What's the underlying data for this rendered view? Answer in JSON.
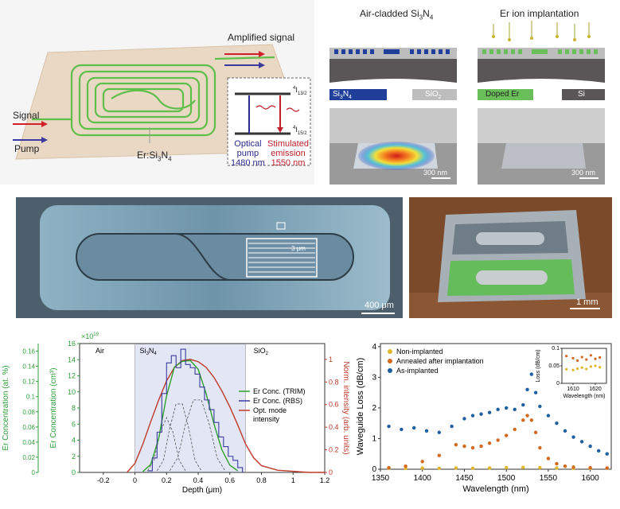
{
  "panel_a": {
    "amplified_signal": "Amplified signal",
    "signal": "Signal",
    "pump": "Pump",
    "material": "Er:Si",
    "material_sub3": "3",
    "material_N": "N",
    "material_sub4": "4",
    "level_upper": "4",
    "level_upper_rest": "I",
    "level_upper_sub": "13/2",
    "level_lower": "4",
    "level_lower_rest": "I",
    "level_lower_sub": "15/2",
    "optical": "Optical",
    "pump_word": "pump",
    "pump_nm": "1480 nm",
    "stimulated": "Stimulated",
    "emission": "emission",
    "emission_nm": "1550 nm"
  },
  "panel_b": {
    "title_left": "Air-cladded Si",
    "title_left_sub3": "3",
    "title_left_N": "N",
    "title_left_sub4": "4",
    "title_right": "Er ion implantation",
    "legend_si3n4": "Si",
    "legend_si3n4_sub3": "3",
    "legend_si3n4_N": "N",
    "legend_si3n4_sub4": "4",
    "legend_sio2": "SiO",
    "legend_sio2_sub": "2",
    "legend_doped": "Doped Er",
    "legend_si": "Si",
    "scale_left": "300 nm",
    "scale_right": "300 nm",
    "colors": {
      "si3n4": "#1f3f9b",
      "sio2": "#bdbdbd",
      "doped": "#6bbf5a",
      "si": "#5a5658"
    }
  },
  "panel_c": {
    "inset_scale": "3 μm",
    "scale": "400 μm"
  },
  "panel_d": {
    "scale": "1 mm"
  },
  "chart_data": [
    {
      "type": "line",
      "title": "",
      "xlabel": "Depth (μm)",
      "ylabel_left_outer": "Er Concentration (at. %)",
      "ylabel_left_inner": "Er Concentration (cm³)",
      "ylabel_right": "Norm. intensity (arb. units)",
      "exponent_label": "×10",
      "exponent_power": "19",
      "xlim": [
        -0.35,
        1.2
      ],
      "ylim_conc": [
        0,
        16
      ],
      "ylim_at": [
        0,
        0.17
      ],
      "ylim_norm": [
        0,
        1.14
      ],
      "x_ticks": [
        "-0.2",
        "0",
        "0.2",
        "0.4",
        "0.6",
        "0.8",
        "1",
        "1.2"
      ],
      "x_tick_values": [
        -0.2,
        0,
        0.2,
        0.4,
        0.6,
        0.8,
        1.0,
        1.2
      ],
      "y_ticks_conc": [
        "0",
        "2",
        "4",
        "6",
        "8",
        "10",
        "12",
        "14",
        "16"
      ],
      "y_ticks_at": [
        "0",
        "0.02",
        "0.04",
        "0.06",
        "0.08",
        "0.1",
        "0.12",
        "0.14",
        "0.16"
      ],
      "y_ticks_norm": [
        "0",
        "0.2",
        "0.4",
        "0.6",
        "0.8",
        "1"
      ],
      "regions": [
        {
          "label": "Air",
          "from": -0.35,
          "to": 0
        },
        {
          "label": "Si",
          "sub1": "3",
          "mid": "N",
          "sub2": "4",
          "from": 0,
          "to": 0.7
        },
        {
          "label": "SiO",
          "sub1": "2",
          "from": 0.7,
          "to": 1.2
        }
      ],
      "legend": [
        "Er Conc. (TRIM)",
        "Er Conc. (RBS)",
        "Opt. mode",
        "intensity"
      ],
      "colors": {
        "trim": "#2ca02c",
        "rbs": "#3b3b9e",
        "mode": "#c0392b",
        "left_axis": "#2e9e3a",
        "right_axis": "#c0392b",
        "silicon_nitride_band": "#e3e6f5"
      },
      "series": [
        {
          "name": "Er Conc. (TRIM)",
          "x": [
            0.05,
            0.1,
            0.15,
            0.2,
            0.25,
            0.3,
            0.35,
            0.4,
            0.45,
            0.5,
            0.55,
            0.6,
            0.65
          ],
          "values": [
            0.1,
            1.0,
            4.2,
            9.5,
            13.1,
            13.8,
            13.9,
            12.8,
            9.8,
            6.0,
            2.8,
            0.9,
            0.2
          ]
        },
        {
          "name": "Er Conc. (RBS)",
          "x": [
            0.08,
            0.11,
            0.14,
            0.17,
            0.2,
            0.23,
            0.26,
            0.29,
            0.32,
            0.35,
            0.38,
            0.41,
            0.44,
            0.47,
            0.5,
            0.53,
            0.56,
            0.59,
            0.62,
            0.65,
            0.68
          ],
          "values": [
            0.2,
            1.8,
            5.0,
            9.8,
            13.6,
            14.5,
            13.0,
            15.3,
            13.4,
            13.0,
            12.2,
            10.6,
            9.0,
            7.8,
            6.2,
            4.4,
            3.2,
            2.0,
            1.5,
            0.6,
            0.0
          ]
        },
        {
          "name": "Opt. mode intensity",
          "x": [
            -0.05,
            0.0,
            0.05,
            0.1,
            0.15,
            0.2,
            0.25,
            0.3,
            0.35,
            0.4,
            0.45,
            0.5,
            0.55,
            0.6,
            0.65,
            0.7,
            0.75,
            0.8,
            0.9,
            1.0,
            1.1,
            1.2
          ],
          "values": [
            0.0,
            0.08,
            0.25,
            0.45,
            0.64,
            0.81,
            0.93,
            0.99,
            1.0,
            0.98,
            0.93,
            0.84,
            0.72,
            0.58,
            0.42,
            0.25,
            0.13,
            0.06,
            0.02,
            0.01,
            0.0,
            0.0
          ]
        },
        {
          "name": "Implant component 1",
          "x": [
            0.08,
            0.12,
            0.16,
            0.2,
            0.24,
            0.28,
            0.32
          ],
          "values": [
            0.2,
            1.5,
            5.0,
            6.8,
            5.0,
            1.5,
            0.2
          ]
        },
        {
          "name": "Implant component 2",
          "x": [
            0.14,
            0.18,
            0.22,
            0.26,
            0.3,
            0.34,
            0.38,
            0.42
          ],
          "values": [
            0.2,
            1.5,
            5.5,
            8.5,
            8.5,
            5.5,
            1.5,
            0.2
          ]
        },
        {
          "name": "Implant component 3",
          "x": [
            0.22,
            0.27,
            0.32,
            0.37,
            0.42,
            0.47,
            0.52,
            0.57
          ],
          "values": [
            0.2,
            1.8,
            6.0,
            9.0,
            9.0,
            6.0,
            1.8,
            0.2
          ]
        }
      ]
    },
    {
      "type": "scatter",
      "title": "",
      "xlabel": "Wavelength (nm)",
      "ylabel": "Waveguide Loss (dB/cm)",
      "xlim": [
        1350,
        1625
      ],
      "ylim": [
        0,
        4.1
      ],
      "x_ticks": [
        "1350",
        "1400",
        "1450",
        "1500",
        "1550",
        "1600"
      ],
      "x_tick_values": [
        1350,
        1400,
        1450,
        1500,
        1550,
        1600
      ],
      "y_ticks": [
        "0",
        "1",
        "2",
        "3",
        "4"
      ],
      "legend": [
        "Non-implanted",
        "Annealed after implantation",
        "As-implanted"
      ],
      "colors": {
        "non": "#e0b62a",
        "annealed": "#d2691e",
        "as": "#1f5fa0"
      },
      "series": [
        {
          "name": "Non-implanted",
          "x": [
            1360,
            1380,
            1400,
            1420,
            1440,
            1460,
            1480,
            1500,
            1520,
            1540,
            1560,
            1580,
            1600,
            1620
          ],
          "values": [
            0.03,
            0.03,
            0.04,
            0.03,
            0.04,
            0.03,
            0.04,
            0.05,
            0.06,
            0.05,
            0.04,
            0.03,
            0.03,
            0.03
          ]
        },
        {
          "name": "Annealed after implantation",
          "x": [
            1360,
            1380,
            1400,
            1420,
            1440,
            1450,
            1460,
            1470,
            1480,
            1490,
            1500,
            1510,
            1520,
            1525,
            1530,
            1535,
            1540,
            1550,
            1560,
            1570,
            1580,
            1600,
            1620
          ],
          "values": [
            0.05,
            0.1,
            0.25,
            0.45,
            0.8,
            0.75,
            0.7,
            0.75,
            0.85,
            0.95,
            1.1,
            1.3,
            1.6,
            1.75,
            1.6,
            1.2,
            0.7,
            0.35,
            0.18,
            0.1,
            0.07,
            0.05,
            0.04
          ]
        },
        {
          "name": "As-implanted",
          "x": [
            1360,
            1375,
            1390,
            1405,
            1420,
            1435,
            1450,
            1460,
            1470,
            1480,
            1490,
            1500,
            1510,
            1520,
            1525,
            1530,
            1535,
            1540,
            1550,
            1560,
            1570,
            1580,
            1590,
            1600,
            1610,
            1620
          ],
          "values": [
            1.4,
            1.3,
            1.35,
            1.25,
            1.2,
            1.4,
            1.65,
            1.75,
            1.8,
            1.85,
            1.95,
            2.0,
            1.95,
            2.1,
            2.6,
            3.1,
            2.5,
            2.05,
            1.75,
            1.5,
            1.25,
            1.05,
            0.9,
            0.75,
            0.6,
            0.5
          ]
        }
      ],
      "inset": {
        "type": "scatter",
        "xlabel": "Wavelength (nm)",
        "ylabel": "Loss (dB/cm)",
        "xlim": [
          1605,
          1625
        ],
        "ylim": [
          0,
          0.1
        ],
        "x_ticks": [
          "1610",
          "1620"
        ],
        "x_tick_values": [
          1610,
          1620
        ],
        "y_ticks": [
          "0",
          "0.05",
          "0.1"
        ],
        "y_tick_values": [
          0,
          0.05,
          0.1
        ],
        "series": [
          {
            "name": "Non-implanted",
            "x": [
              1607,
              1610,
              1612,
              1614,
              1616,
              1618,
              1620,
              1622
            ],
            "values": [
              0.04,
              0.038,
              0.042,
              0.045,
              0.041,
              0.048,
              0.05,
              0.046
            ]
          },
          {
            "name": "Annealed after implantation",
            "x": [
              1607,
              1610,
              1612,
              1614,
              1616,
              1618,
              1620,
              1622
            ],
            "values": [
              0.078,
              0.072,
              0.065,
              0.075,
              0.068,
              0.08,
              0.07,
              0.074
            ]
          }
        ]
      }
    }
  ]
}
